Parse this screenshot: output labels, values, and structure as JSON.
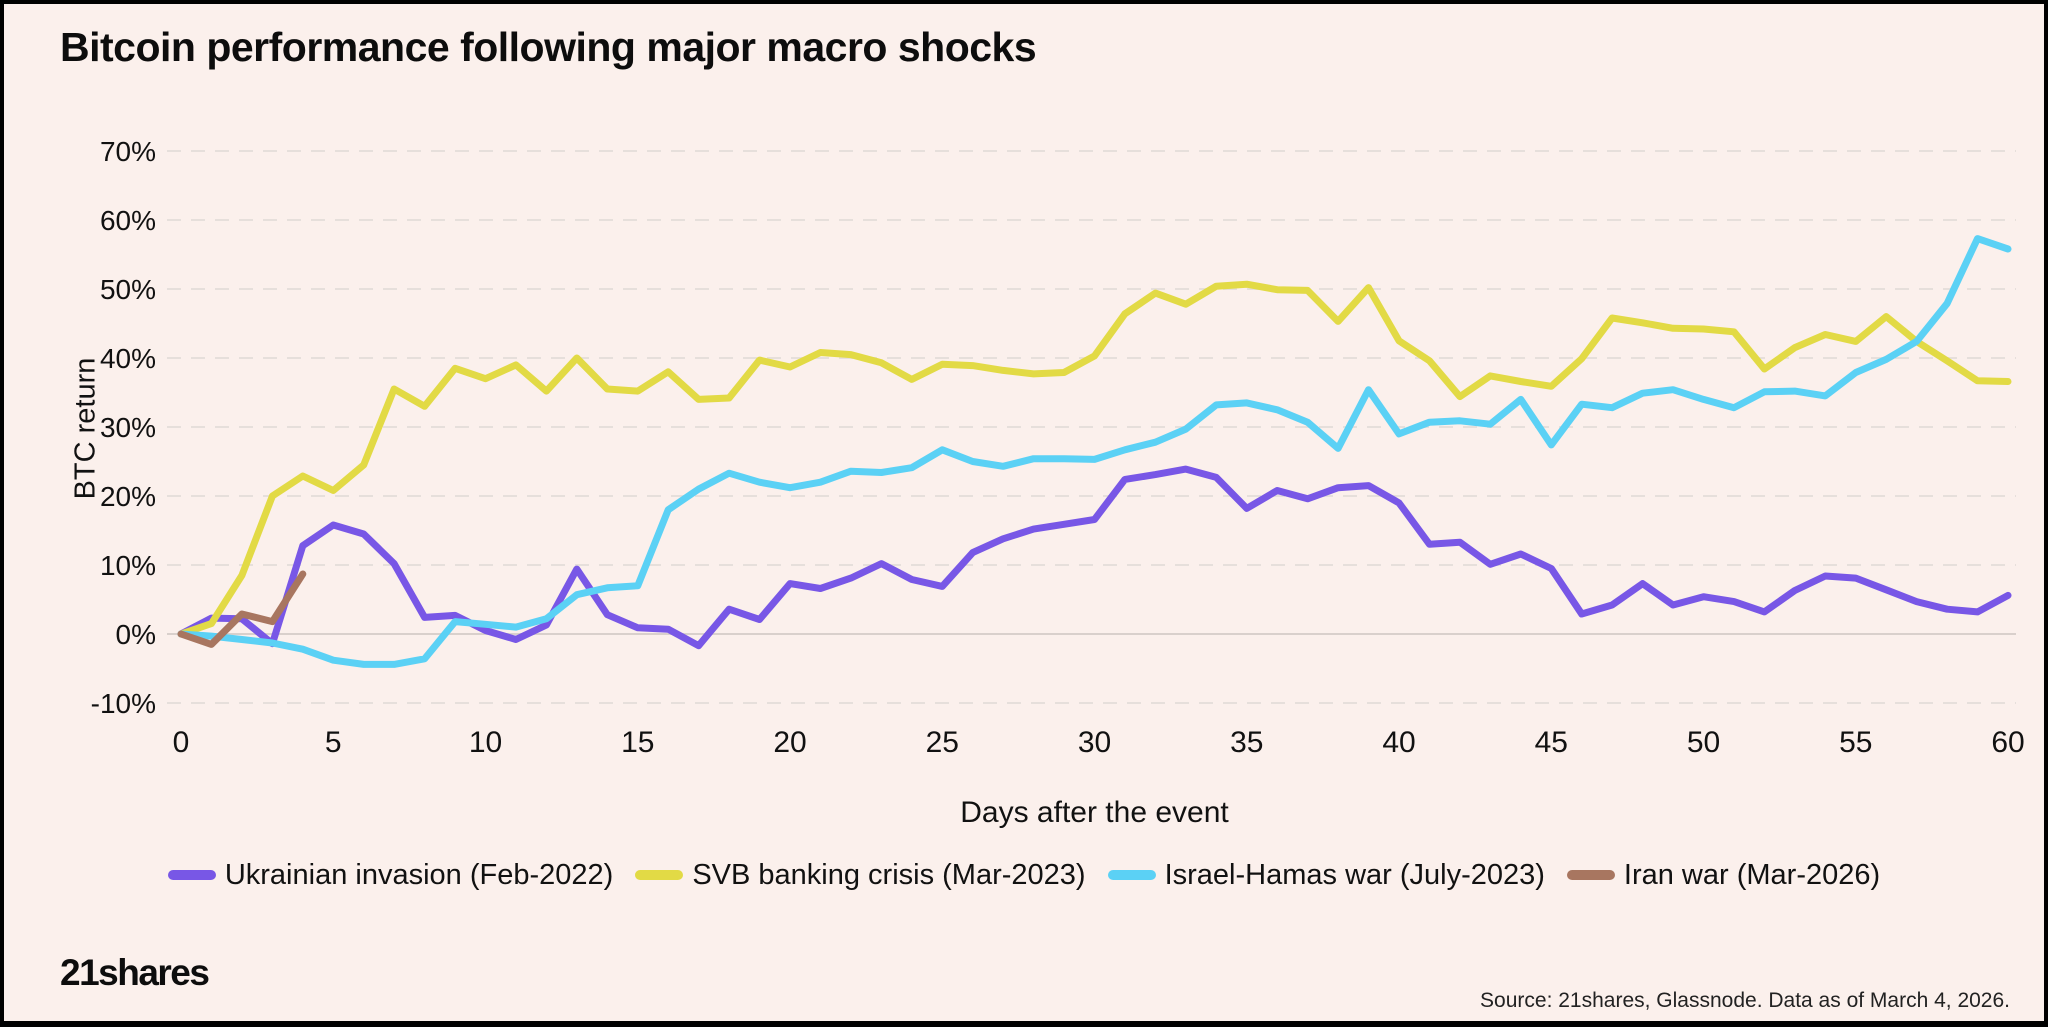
{
  "title": "Bitcoin performance following major macro shocks",
  "footer": {
    "brand": "21shares",
    "source": "Source: 21shares, Glassnode. Data as of March 4, 2026."
  },
  "colors": {
    "background": "#FBF0EC",
    "border": "#000000",
    "grid": "#E6DFDB",
    "zero_line": "#D9D0CC",
    "text": "#111111",
    "ukraine_purple": "#7857E6",
    "svb_yellow": "#E2DA45",
    "israel_cyan": "#5BD1F5",
    "iran_brown": "#A87660"
  },
  "chart_data": {
    "type": "line",
    "title": "Bitcoin performance following major macro shocks",
    "xlabel": "Days after the event",
    "ylabel": "BTC return",
    "x_unit": "days",
    "x_range": [
      0,
      60
    ],
    "ylim": [
      -10,
      70
    ],
    "xticks": [
      0,
      5,
      10,
      15,
      20,
      25,
      30,
      35,
      40,
      45,
      50,
      55,
      60
    ],
    "yticks": [
      {
        "value": 70,
        "label": "70%"
      },
      {
        "value": 60,
        "label": "60%"
      },
      {
        "value": 50,
        "label": "50%"
      },
      {
        "value": 40,
        "label": "40%"
      },
      {
        "value": 30,
        "label": "30%"
      },
      {
        "value": 20,
        "label": "20%"
      },
      {
        "value": 10,
        "label": "10%"
      },
      {
        "value": 0,
        "label": "0%"
      },
      {
        "value": -10,
        "label": "-10%"
      }
    ],
    "grid": "horizontal-dashed",
    "legend_position": "bottom",
    "series": [
      {
        "name": "Ukrainian invasion (Feb-2022)",
        "color": "#7857E6",
        "values": [
          0,
          2.3,
          2.2,
          -1.4,
          12.8,
          15.8,
          14.5,
          10.2,
          2.4,
          2.7,
          0.5,
          -0.8,
          1.3,
          9.4,
          2.8,
          0.9,
          0.7,
          -1.7,
          3.6,
          2.1,
          7.3,
          6.6,
          8.1,
          10.2,
          7.9,
          6.9,
          11.8,
          13.8,
          15.2,
          15.9,
          16.6,
          22.4,
          23.1,
          23.9,
          22.7,
          18.2,
          20.8,
          19.6,
          21.2,
          21.5,
          19.0,
          13.0,
          13.3,
          10.1,
          11.6,
          9.5,
          2.9,
          4.2,
          7.3,
          4.2,
          5.4,
          4.7,
          3.2,
          6.3,
          8.4,
          8.1,
          6.4,
          4.7,
          3.6,
          3.2,
          5.6
        ]
      },
      {
        "name": "SVB banking crisis (Mar-2023)",
        "color": "#E2DA45",
        "values": [
          0,
          1.5,
          8.5,
          20.0,
          22.9,
          20.8,
          24.5,
          35.5,
          33.0,
          38.5,
          37.0,
          39.0,
          35.2,
          40.0,
          35.5,
          35.2,
          38.0,
          34.0,
          34.2,
          39.7,
          38.7,
          40.8,
          40.5,
          39.3,
          36.9,
          39.1,
          38.9,
          38.2,
          37.7,
          37.9,
          40.3,
          46.4,
          49.4,
          47.8,
          50.4,
          50.7,
          49.9,
          49.8,
          45.3,
          50.2,
          42.5,
          39.6,
          34.4,
          37.4,
          36.6,
          35.9,
          39.9,
          45.8,
          45.1,
          44.3,
          44.2,
          43.8,
          38.4,
          41.5,
          43.4,
          42.4,
          46.0,
          42.4,
          39.6,
          36.7,
          36.6
        ]
      },
      {
        "name": "Israel-Hamas war (July-2023)",
        "color": "#5BD1F5",
        "values": [
          0,
          -0.3,
          -0.8,
          -1.3,
          -2.2,
          -3.8,
          -4.4,
          -4.4,
          -3.6,
          1.8,
          1.4,
          1.0,
          2.2,
          5.7,
          6.7,
          7.0,
          18.0,
          21.0,
          23.3,
          22.0,
          21.2,
          22.0,
          23.6,
          23.4,
          24.1,
          26.7,
          25.0,
          24.3,
          25.4,
          25.4,
          25.3,
          26.7,
          27.8,
          29.7,
          33.2,
          33.5,
          32.5,
          30.7,
          26.9,
          35.4,
          29.0,
          30.7,
          30.9,
          30.4,
          34.0,
          27.4,
          33.3,
          32.8,
          34.9,
          35.4,
          34.0,
          32.8,
          35.1,
          35.2,
          34.5,
          37.9,
          39.8,
          42.4,
          47.9,
          57.3,
          55.8
        ]
      },
      {
        "name": "Iran war (Mar-2026)",
        "color": "#A87660",
        "values": [
          0,
          -1.5,
          2.9,
          1.8,
          8.7
        ]
      }
    ]
  }
}
